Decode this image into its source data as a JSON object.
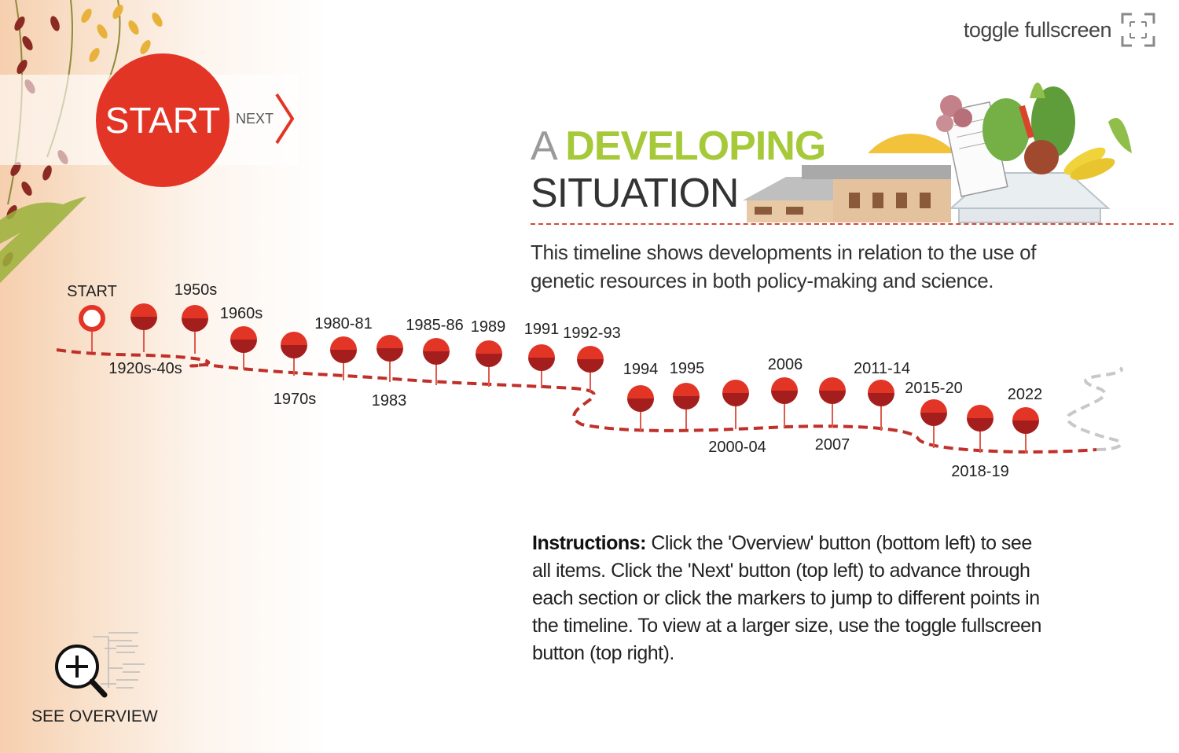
{
  "header": {
    "fullscreen_label": "toggle fullscreen",
    "fullscreen_icon": "fullscreen-corners-icon"
  },
  "nav": {
    "start_label": "START",
    "next_label": "NEXT",
    "next_icon": "chevron-right-icon"
  },
  "title": {
    "prefix": "A",
    "highlight": "DEVELOPING",
    "line2": "SITUATION"
  },
  "intro": "This timeline shows developments in relation to the use of genetic resources in both policy-making and science.",
  "instructions": {
    "label": "Instructions:",
    "text": "Click the 'Overview' button (bottom left) to see all items. Click the 'Next' button (top left) to advance through each section or click the markers to jump to different points in the timeline. To view at a larger size, use the toggle fullscreen button (top right)."
  },
  "overview": {
    "label": "SEE OVERVIEW",
    "icon": "zoom-in-icon"
  },
  "timeline": {
    "markers": [
      {
        "label": "START",
        "current": true
      },
      {
        "label": "1920s-40s"
      },
      {
        "label": "1950s"
      },
      {
        "label": "1960s"
      },
      {
        "label": "1970s"
      },
      {
        "label": "1980-81"
      },
      {
        "label": "1983"
      },
      {
        "label": "1985-86"
      },
      {
        "label": "1989"
      },
      {
        "label": "1991"
      },
      {
        "label": "1992-93"
      },
      {
        "label": "1994"
      },
      {
        "label": "1995"
      },
      {
        "label": "2000-04"
      },
      {
        "label": "2006"
      },
      {
        "label": "2007"
      },
      {
        "label": "2011-14"
      },
      {
        "label": "2015-20"
      },
      {
        "label": "2018-19"
      },
      {
        "label": "2022"
      }
    ]
  },
  "colors": {
    "accent": "#e33526",
    "marker_dark": "#a51e1e",
    "path": "#c0302a",
    "highlight": "#a6c93a"
  }
}
